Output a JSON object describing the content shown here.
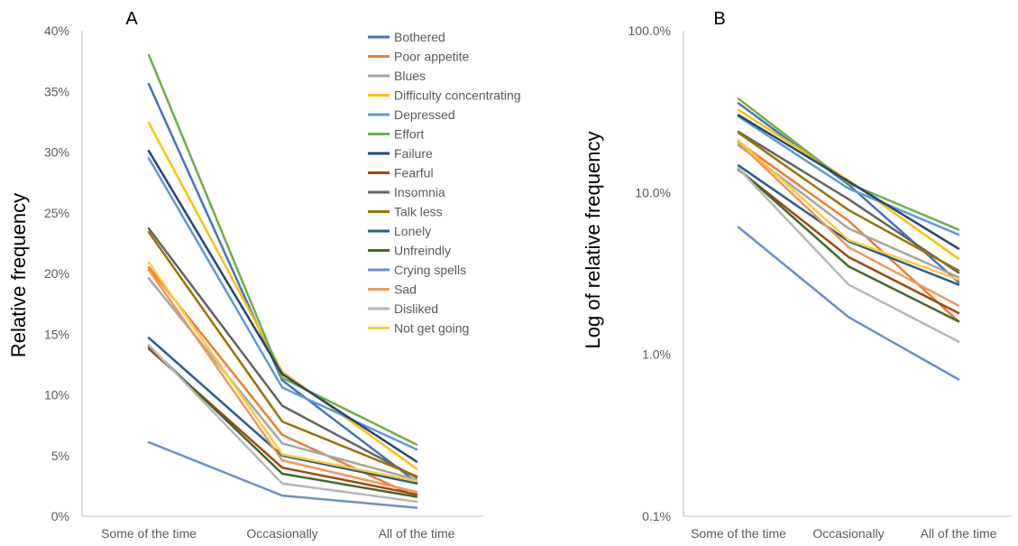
{
  "colors": {
    "Bothered": "#4472C4",
    "Poor appetite": "#ED7D31",
    "Blues": "#A5A5A5",
    "Difficulty concentrating": "#FFC000",
    "Depressed": "#5B9BD5",
    "Effort": "#70AD47",
    "Failure": "#264478",
    "Fearful": "#9E480E",
    "Insomnia": "#636363",
    "Talk less": "#997300",
    "Lonely": "#255E91",
    "Unfreindly": "#43682B",
    "Crying spells": "#698ED0",
    "Sad": "#F1975A",
    "Disliked": "#B7B7B7",
    "Not get going": "#FFCD33"
  },
  "chart_data": [
    {
      "type": "line",
      "panel_label": "A",
      "ylabel": "Relative frequency",
      "xlabel": "",
      "ylim": [
        0,
        40
      ],
      "yticks": [
        "0%",
        "5%",
        "10%",
        "15%",
        "20%",
        "25%",
        "30%",
        "35%",
        "40%"
      ],
      "ytick_values": [
        0,
        5,
        10,
        15,
        20,
        25,
        30,
        35,
        40
      ],
      "categories": [
        "Some of the time",
        "Occasionally",
        "All of the time"
      ],
      "legend": "top-right",
      "grid": false,
      "series": [
        {
          "name": "Bothered",
          "values": [
            35.6,
            11.2,
            2.8
          ]
        },
        {
          "name": "Poor appetite",
          "values": [
            20.5,
            6.7,
            1.6
          ]
        },
        {
          "name": "Blues",
          "values": [
            19.6,
            6.0,
            3.0
          ]
        },
        {
          "name": "Difficulty concentrating",
          "values": [
            32.4,
            11.9,
            3.9
          ]
        },
        {
          "name": "Depressed",
          "values": [
            29.5,
            10.6,
            5.5
          ]
        },
        {
          "name": "Effort",
          "values": [
            38.0,
            11.4,
            5.9
          ]
        },
        {
          "name": "Failure",
          "values": [
            30.1,
            11.7,
            4.5
          ]
        },
        {
          "name": "Fearful",
          "values": [
            13.8,
            4.0,
            1.8
          ]
        },
        {
          "name": "Insomnia",
          "values": [
            23.7,
            9.1,
            3.2
          ]
        },
        {
          "name": "Talk less",
          "values": [
            23.4,
            7.8,
            3.3
          ]
        },
        {
          "name": "Lonely",
          "values": [
            14.7,
            5.0,
            2.7
          ]
        },
        {
          "name": "Unfreindly",
          "values": [
            14.0,
            3.5,
            1.6
          ]
        },
        {
          "name": "Crying spells",
          "values": [
            6.1,
            1.7,
            0.7
          ]
        },
        {
          "name": "Sad",
          "values": [
            20.3,
            4.6,
            2.0
          ]
        },
        {
          "name": "Disliked",
          "values": [
            14.1,
            2.7,
            1.2
          ]
        },
        {
          "name": "Not get going",
          "values": [
            20.9,
            5.1,
            2.9
          ]
        }
      ]
    },
    {
      "type": "line",
      "panel_label": "B",
      "ylabel": "Log of relative frequency",
      "xlabel": "",
      "yscale": "log",
      "ylim": [
        0.1,
        100
      ],
      "yticks": [
        "0.1%",
        "1.0%",
        "10.0%",
        "100.0%"
      ],
      "ytick_values": [
        0.1,
        1,
        10,
        100
      ],
      "categories": [
        "Some of the time",
        "Occasionally",
        "All of the time"
      ],
      "legend": "none",
      "grid": false,
      "series": [
        {
          "name": "Bothered",
          "values": [
            35.6,
            11.2,
            2.8
          ]
        },
        {
          "name": "Poor appetite",
          "values": [
            20.5,
            6.7,
            1.6
          ]
        },
        {
          "name": "Blues",
          "values": [
            19.6,
            6.0,
            3.0
          ]
        },
        {
          "name": "Difficulty concentrating",
          "values": [
            32.4,
            11.9,
            3.9
          ]
        },
        {
          "name": "Depressed",
          "values": [
            29.5,
            10.6,
            5.5
          ]
        },
        {
          "name": "Effort",
          "values": [
            38.0,
            11.4,
            5.9
          ]
        },
        {
          "name": "Failure",
          "values": [
            30.1,
            11.7,
            4.5
          ]
        },
        {
          "name": "Fearful",
          "values": [
            13.8,
            4.0,
            1.8
          ]
        },
        {
          "name": "Insomnia",
          "values": [
            23.7,
            9.1,
            3.2
          ]
        },
        {
          "name": "Talk less",
          "values": [
            23.4,
            7.8,
            3.3
          ]
        },
        {
          "name": "Lonely",
          "values": [
            14.7,
            5.0,
            2.7
          ]
        },
        {
          "name": "Unfreindly",
          "values": [
            14.0,
            3.5,
            1.6
          ]
        },
        {
          "name": "Crying spells",
          "values": [
            6.1,
            1.7,
            0.7
          ]
        },
        {
          "name": "Sad",
          "values": [
            20.3,
            4.6,
            2.0
          ]
        },
        {
          "name": "Disliked",
          "values": [
            14.1,
            2.7,
            1.2
          ]
        },
        {
          "name": "Not get going",
          "values": [
            20.9,
            5.1,
            2.9
          ]
        }
      ]
    }
  ]
}
